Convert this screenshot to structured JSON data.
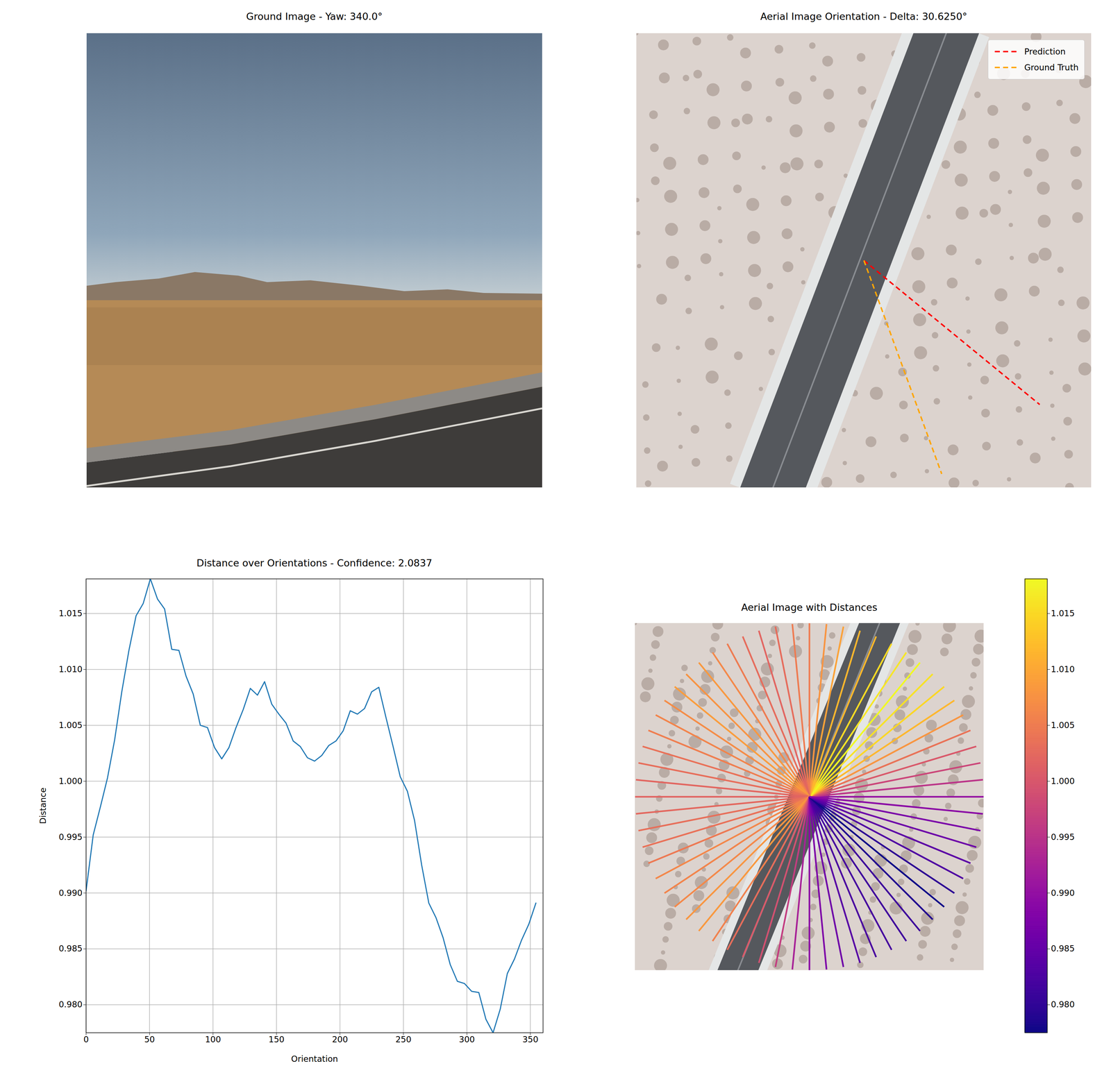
{
  "chart_data": [
    {
      "type": "image",
      "title": "Ground Image - Yaw: 340.0°"
    },
    {
      "type": "orientation",
      "title": "Aerial Image Orientation - Delta: 30.6250°",
      "legend": "upper right",
      "series": [
        {
          "name": "Prediction",
          "color": "red",
          "line_style": "dashed",
          "orientation": 320.625
        },
        {
          "name": "Ground Truth",
          "color": "orange",
          "line_style": "dashed",
          "orientation": 290
        }
      ]
    },
    {
      "type": "line",
      "title": "Distance over Orientations - Confidence: 2.0837",
      "x_label": "Orientation",
      "y_label": "Distance",
      "color": "#1f77b4",
      "grid": true,
      "x": [
        0,
        5.625,
        11.25,
        16.875,
        22.5,
        28.125,
        33.75,
        39.375,
        45,
        50.625,
        56.25,
        61.875,
        67.5,
        73.125,
        78.75,
        84.375,
        90,
        95.625,
        101.25,
        106.875,
        112.5,
        118.125,
        123.75,
        129.375,
        135,
        140.625,
        146.25,
        151.875,
        157.5,
        163.125,
        168.75,
        174.375,
        180,
        185.625,
        191.25,
        196.875,
        202.5,
        208.125,
        213.75,
        219.375,
        225,
        230.625,
        236.25,
        241.875,
        247.5,
        253.125,
        258.75,
        264.375,
        270,
        275.625,
        281.25,
        286.875,
        292.5,
        298.125,
        303.75,
        309.375,
        315,
        320.625,
        326.25,
        331.875,
        337.5,
        343.125,
        348.75,
        354.375
      ],
      "values": [
        0.9902,
        0.9952,
        0.9977,
        1.0003,
        1.0037,
        1.008,
        1.0117,
        1.0148,
        1.0159,
        1.0181,
        1.0163,
        1.0154,
        1.0118,
        1.0117,
        1.0094,
        1.0078,
        1.005,
        1.0048,
        1.003,
        1.002,
        1.003,
        1.0048,
        1.0064,
        1.0083,
        1.0077,
        1.0089,
        1.0069,
        1.006,
        1.0052,
        1.0036,
        1.0031,
        1.0021,
        1.0018,
        1.0023,
        1.0032,
        1.0036,
        1.0045,
        1.0063,
        1.006,
        1.0065,
        1.008,
        1.0084,
        1.0057,
        1.0031,
        1.0004,
        0.9991,
        0.9965,
        0.9925,
        0.9891,
        0.9878,
        0.986,
        0.9836,
        0.9821,
        0.9819,
        0.9812,
        0.9811,
        0.9787,
        0.9775,
        0.9796,
        0.9828,
        0.9841,
        0.9858,
        0.9872,
        0.9891
      ],
      "xlim": [
        0,
        360
      ],
      "xticks": [
        0,
        50,
        100,
        150,
        200,
        250,
        300,
        350
      ],
      "ylim": [
        0.9775,
        1.0181
      ],
      "yticks": [
        {
          "value": 0.98,
          "label": "0.980"
        },
        0.985,
        {
          "value": 0.99,
          "label": "0.990"
        },
        0.995,
        {
          "value": 1,
          "label": "1.000"
        },
        1.005,
        {
          "value": 1.01,
          "label": "1.010"
        },
        1.015
      ]
    },
    {
      "type": "radial",
      "title": "Aerial Image with Distances",
      "color": "plasma",
      "x": [
        0,
        5.625,
        11.25,
        16.875,
        22.5,
        28.125,
        33.75,
        39.375,
        45,
        50.625,
        56.25,
        61.875,
        67.5,
        73.125,
        78.75,
        84.375,
        90,
        95.625,
        101.25,
        106.875,
        112.5,
        118.125,
        123.75,
        129.375,
        135,
        140.625,
        146.25,
        151.875,
        157.5,
        163.125,
        168.75,
        174.375,
        180,
        185.625,
        191.25,
        196.875,
        202.5,
        208.125,
        213.75,
        219.375,
        225,
        230.625,
        236.25,
        241.875,
        247.5,
        253.125,
        258.75,
        264.375,
        270,
        275.625,
        281.25,
        286.875,
        292.5,
        298.125,
        303.75,
        309.375,
        315,
        320.625,
        326.25,
        331.875,
        337.5,
        343.125,
        348.75,
        354.375
      ],
      "values": [
        0.9902,
        0.9952,
        0.9977,
        1.0003,
        1.0037,
        1.008,
        1.0117,
        1.0148,
        1.0159,
        1.0181,
        1.0163,
        1.0154,
        1.0118,
        1.0117,
        1.0094,
        1.0078,
        1.005,
        1.0048,
        1.003,
        1.002,
        1.003,
        1.0048,
        1.0064,
        1.0083,
        1.0077,
        1.0089,
        1.0069,
        1.006,
        1.0052,
        1.0036,
        1.0031,
        1.0021,
        1.0018,
        1.0023,
        1.0032,
        1.0036,
        1.0045,
        1.0063,
        1.006,
        1.0065,
        1.008,
        1.0084,
        1.0057,
        1.0031,
        1.0004,
        0.9991,
        0.9965,
        0.9925,
        0.9891,
        0.9878,
        0.986,
        0.9836,
        0.9821,
        0.9819,
        0.9812,
        0.9811,
        0.9787,
        0.9775,
        0.9796,
        0.9828,
        0.9841,
        0.9858,
        0.9872,
        0.9891
      ],
      "colorbar": {
        "lim": [
          0.9775,
          1.0181
        ],
        "ticks": [
          {
            "value": 0.98,
            "label": "0.980"
          },
          0.985,
          {
            "value": 0.99,
            "label": "0.990"
          },
          0.995,
          {
            "value": 1,
            "label": "1.000"
          },
          1.005,
          {
            "value": 1.01,
            "label": "1.010"
          },
          1.015
        ]
      }
    }
  ]
}
